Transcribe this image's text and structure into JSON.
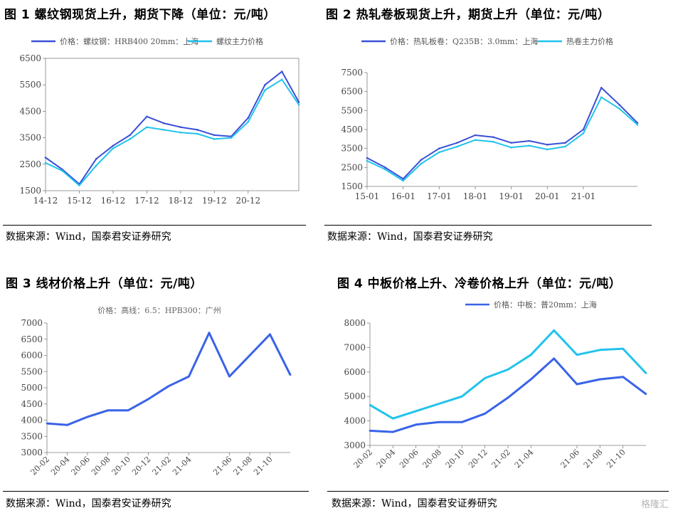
{
  "panels": [
    {
      "title": "图 1 螺纹钢现货上升，期货下降（单位：元/吨）",
      "source": "数据来源：Wind，国泰君安证券研究",
      "colors": [
        "#3a4fd8",
        "#21c3ec"
      ],
      "chart_data": {
        "type": "line",
        "x": [
          "14-12",
          "15-06",
          "15-12",
          "16-06",
          "16-12",
          "17-06",
          "17-12",
          "18-06",
          "18-12",
          "19-06",
          "19-12",
          "20-06",
          "20-12",
          "21-06",
          "21-09",
          "21-10"
        ],
        "x_ticks": [
          "14-12",
          "15-12",
          "16-12",
          "17-12",
          "18-12",
          "19-12",
          "20-12"
        ],
        "ylim": [
          1500,
          6500
        ],
        "y_ticks": [
          1500,
          2500,
          3500,
          4500,
          5500,
          6500
        ],
        "legend": "top",
        "series": [
          {
            "name": "价格：螺纹钢：HRB400 20mm：上海",
            "values": [
              2750,
              2300,
              1750,
              2700,
              3200,
              3600,
              4300,
              4050,
              3900,
              3800,
              3600,
              3550,
              4250,
              5500,
              6000,
              4850
            ]
          },
          {
            "name": "螺纹主力价格",
            "values": [
              2550,
              2250,
              1700,
              2450,
              3100,
              3450,
              3900,
              3800,
              3700,
              3650,
              3450,
              3500,
              4100,
              5300,
              5700,
              4750
            ]
          }
        ]
      }
    },
    {
      "title": "图 2 热轧卷板现货上升，期货上升（单位：元/吨）",
      "source": "数据来源：Wind，国泰君安证券研究",
      "colors": [
        "#3a4fd8",
        "#21c3ec"
      ],
      "chart_data": {
        "type": "line",
        "x": [
          "15-01",
          "15-07",
          "16-01",
          "16-07",
          "17-01",
          "17-07",
          "18-01",
          "18-07",
          "19-01",
          "19-07",
          "20-01",
          "20-07",
          "21-01",
          "21-05",
          "21-09",
          "21-10"
        ],
        "x_ticks": [
          "15-01",
          "16-01",
          "17-01",
          "18-01",
          "19-01",
          "20-01",
          "21-01"
        ],
        "ylim": [
          1500,
          7500
        ],
        "y_ticks": [
          1500,
          2500,
          3500,
          4500,
          5500,
          6500,
          7500
        ],
        "legend": "top",
        "series": [
          {
            "name": "价格：热轧板卷：Q235B：3.0mm：上海",
            "values": [
              3000,
              2500,
              1900,
              2900,
              3500,
              3800,
              4200,
              4100,
              3800,
              3900,
              3700,
              3800,
              4500,
              6700,
              5800,
              4850
            ]
          },
          {
            "name": "热卷主力价格",
            "values": [
              2850,
              2400,
              1800,
              2700,
              3300,
              3600,
              3950,
              3850,
              3550,
              3650,
              3450,
              3600,
              4300,
              6200,
              5600,
              4750
            ]
          }
        ]
      }
    },
    {
      "title": "图 3 线材价格上升（单位：元/吨）",
      "source": "数据来源：Wind，国泰君安证券研究",
      "colors": [
        "#3a63e8"
      ],
      "chart_data": {
        "type": "line",
        "x": [
          "20-02",
          "20-04",
          "20-06",
          "20-08",
          "20-10",
          "20-12",
          "21-02",
          "21-04",
          "21-05",
          "21-06",
          "21-08",
          "21-10",
          "21-11"
        ],
        "x_ticks": [
          "20-02",
          "20-04",
          "20-06",
          "20-08",
          "20-10",
          "20-12",
          "21-02",
          "21-04",
          "21-06",
          "21-08",
          "21-10"
        ],
        "ylim": [
          3000,
          7000
        ],
        "y_ticks": [
          3000,
          3500,
          4000,
          4500,
          5000,
          5500,
          6000,
          6500,
          7000
        ],
        "legend": "top",
        "series": [
          {
            "name": "价格：高线：6.5：HPB300：广州",
            "values": [
              3900,
              3850,
              4100,
              4300,
              4300,
              4650,
              5050,
              5350,
              6700,
              5350,
              6000,
              6650,
              5400
            ]
          }
        ]
      }
    },
    {
      "title": "图 4 中板价格上升、冷卷价格上升（单位：元/吨）",
      "source": "数据来源：Wind，国泰君安证券研究",
      "colors": [
        "#3a63e8",
        "#21c3ec"
      ],
      "chart_data": {
        "type": "line",
        "x": [
          "20-02",
          "20-04",
          "20-06",
          "20-08",
          "20-10",
          "20-12",
          "21-02",
          "21-04",
          "21-05",
          "21-06",
          "21-08",
          "21-10",
          "21-11"
        ],
        "x_ticks": [
          "20-02",
          "20-04",
          "20-06",
          "20-08",
          "20-10",
          "20-12",
          "21-02",
          "21-04",
          "21-06",
          "21-08",
          "21-10"
        ],
        "ylim": [
          3000,
          8000
        ],
        "y_ticks": [
          3000,
          4000,
          5000,
          6000,
          7000,
          8000
        ],
        "legend": "top",
        "series": [
          {
            "name": "价格：中板：普20mm：上海",
            "values": [
              3600,
              3550,
              3850,
              3950,
              3950,
              4300,
              4950,
              5700,
              6550,
              5500,
              5700,
              5800,
              5100
            ]
          },
          {
            "name": "",
            "values": [
              4650,
              4100,
              4400,
              4700,
              5000,
              5750,
              6100,
              6700,
              7700,
              6700,
              6900,
              6950,
              5950
            ]
          }
        ]
      }
    }
  ],
  "watermark": "格隆汇"
}
